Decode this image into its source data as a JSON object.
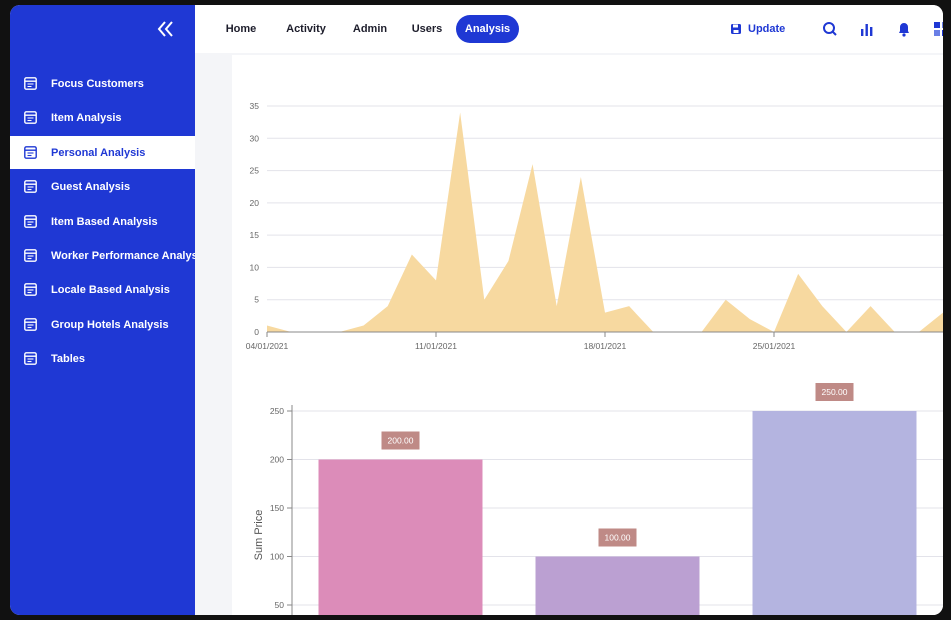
{
  "sidebar": {
    "items": [
      {
        "label": "Focus Customers"
      },
      {
        "label": "Item Analysis"
      },
      {
        "label": "Personal Analysis"
      },
      {
        "label": "Guest Analysis"
      },
      {
        "label": "Item Based Analysis"
      },
      {
        "label": "Worker Performance Analysis"
      },
      {
        "label": "Locale Based Analysis"
      },
      {
        "label": "Group Hotels Analysis"
      },
      {
        "label": "Tables"
      }
    ],
    "active_index": 2,
    "collapse_icon": "double-chevron-left-icon",
    "item_icon": "table-icon"
  },
  "header": {
    "nav": [
      "Home",
      "Activity",
      "Admin",
      "Users",
      "Analysis"
    ],
    "active_nav": "Analysis",
    "update_label": "Update",
    "icons": [
      "save-icon",
      "search-icon",
      "bar-chart-icon",
      "bell-icon",
      "grid-icon"
    ]
  },
  "colors": {
    "accent": "#1f38d4",
    "area_fill": "#f7d9a0",
    "bar_colors": [
      "#dc8cb9",
      "#bba0d2",
      "#b4b4e0"
    ],
    "label_bg": "#bf8a86"
  },
  "chart_data": [
    {
      "type": "area",
      "x_ticks": [
        "04/01/2021",
        "11/01/2021",
        "18/01/2021",
        "25/01/2021"
      ],
      "x_range_days": [
        0,
        28
      ],
      "ylim": [
        0,
        35
      ],
      "y_ticks": [
        0,
        5,
        10,
        15,
        20,
        25,
        30,
        35
      ],
      "points": [
        [
          0,
          1
        ],
        [
          1,
          0
        ],
        [
          2,
          0
        ],
        [
          3,
          0
        ],
        [
          4,
          1
        ],
        [
          5,
          4
        ],
        [
          6,
          12
        ],
        [
          7,
          8
        ],
        [
          8,
          34
        ],
        [
          9,
          5
        ],
        [
          10,
          11
        ],
        [
          11,
          26
        ],
        [
          12,
          4
        ],
        [
          13,
          24
        ],
        [
          14,
          3
        ],
        [
          15,
          4
        ],
        [
          16,
          0
        ],
        [
          17,
          0
        ],
        [
          18,
          0
        ],
        [
          19,
          5
        ],
        [
          20,
          2
        ],
        [
          21,
          0
        ],
        [
          22,
          9
        ],
        [
          23,
          4
        ],
        [
          24,
          0
        ],
        [
          25,
          4
        ],
        [
          26,
          0
        ],
        [
          27,
          0
        ],
        [
          28,
          3
        ]
      ],
      "grid": true
    },
    {
      "type": "bar",
      "ylabel": "Sum Price",
      "y_ticks": [
        50,
        100,
        150,
        200,
        250
      ],
      "values": [
        200,
        100,
        250
      ],
      "value_labels": [
        "200.00",
        "100.00",
        "250.00"
      ],
      "grid": true
    }
  ]
}
